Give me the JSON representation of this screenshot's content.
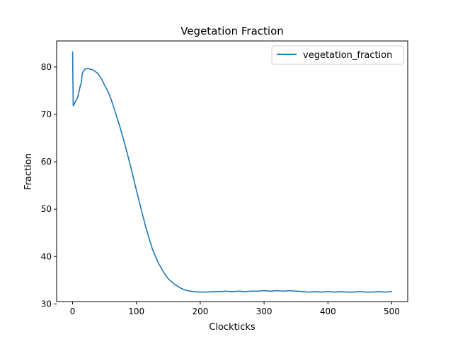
{
  "chart_data": {
    "type": "line",
    "title": "Vegetation Fraction",
    "xlabel": "Clockticks",
    "ylabel": "Fraction",
    "xlim": [
      -25,
      525
    ],
    "ylim": [
      30.5,
      85.5
    ],
    "xticks": [
      0,
      100,
      200,
      300,
      400,
      500
    ],
    "yticks": [
      30,
      40,
      50,
      60,
      70,
      80
    ],
    "grid": false,
    "legend_position": "top-right",
    "series": [
      {
        "name": "vegetation_fraction",
        "color": "#1f77b4",
        "x": [
          0,
          1,
          3,
          5,
          8,
          10,
          12,
          14,
          15,
          17,
          20,
          25,
          28,
          30,
          33,
          36,
          40,
          43,
          46,
          50,
          55,
          60,
          65,
          70,
          75,
          80,
          85,
          90,
          95,
          100,
          105,
          110,
          115,
          120,
          125,
          130,
          135,
          140,
          145,
          150,
          155,
          160,
          165,
          170,
          175,
          180,
          185,
          190,
          200,
          210,
          220,
          230,
          240,
          250,
          260,
          270,
          280,
          290,
          300,
          310,
          320,
          330,
          340,
          350,
          360,
          370,
          380,
          390,
          400,
          410,
          420,
          430,
          440,
          450,
          460,
          470,
          480,
          490,
          500
        ],
        "y": [
          83.2,
          71.8,
          72.3,
          72.9,
          73.6,
          74.8,
          76.0,
          76.9,
          78.6,
          79.1,
          79.6,
          79.7,
          79.5,
          79.5,
          79.3,
          79.0,
          78.6,
          78.0,
          77.3,
          76.2,
          75.0,
          73.3,
          71.3,
          69.2,
          67.0,
          64.6,
          62.1,
          59.5,
          56.8,
          54.0,
          51.3,
          48.6,
          46.1,
          43.8,
          41.6,
          40.0,
          38.5,
          37.3,
          36.2,
          35.3,
          34.7,
          34.1,
          33.7,
          33.3,
          33.0,
          32.8,
          32.7,
          32.6,
          32.5,
          32.5,
          32.6,
          32.6,
          32.7,
          32.6,
          32.7,
          32.6,
          32.7,
          32.7,
          32.8,
          32.7,
          32.8,
          32.7,
          32.8,
          32.7,
          32.6,
          32.5,
          32.6,
          32.5,
          32.6,
          32.5,
          32.6,
          32.5,
          32.5,
          32.6,
          32.5,
          32.5,
          32.6,
          32.5,
          32.6
        ]
      }
    ]
  }
}
